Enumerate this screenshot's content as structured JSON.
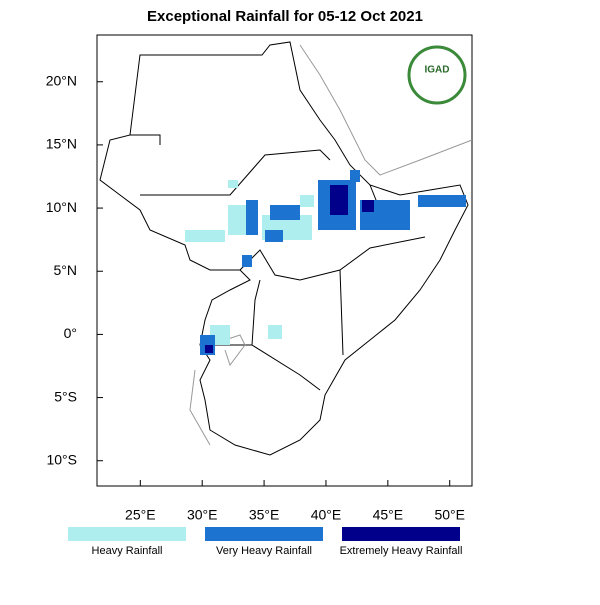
{
  "map": {
    "title": "Exceptional Rainfall for 05-12 Oct 2021",
    "xlim": [
      21.5,
      51.8
    ],
    "ylim": [
      -12,
      23.7
    ],
    "xticks": [
      {
        "value": 25,
        "label": "25°E"
      },
      {
        "value": 30,
        "label": "30°E"
      },
      {
        "value": 35,
        "label": "35°E"
      },
      {
        "value": 40,
        "label": "40°E"
      },
      {
        "value": 45,
        "label": "45°E"
      },
      {
        "value": 50,
        "label": "50°E"
      }
    ],
    "yticks": [
      {
        "value": 20,
        "label": "20°N"
      },
      {
        "value": 15,
        "label": "15°N"
      },
      {
        "value": 10,
        "label": "10°N"
      },
      {
        "value": 5,
        "label": "5°N"
      },
      {
        "value": 0,
        "label": "0°"
      },
      {
        "value": -5,
        "label": "5°S"
      },
      {
        "value": -10,
        "label": "10°S"
      }
    ],
    "legend": [
      {
        "label": "Heavy Rainfall",
        "color": "#aeeeee"
      },
      {
        "label": "Very Heavy Rainfall",
        "color": "#1c74d0"
      },
      {
        "label": "Extremely Heavy Rainfall",
        "color": "#00008b"
      }
    ],
    "logo": "IGAD"
  }
}
